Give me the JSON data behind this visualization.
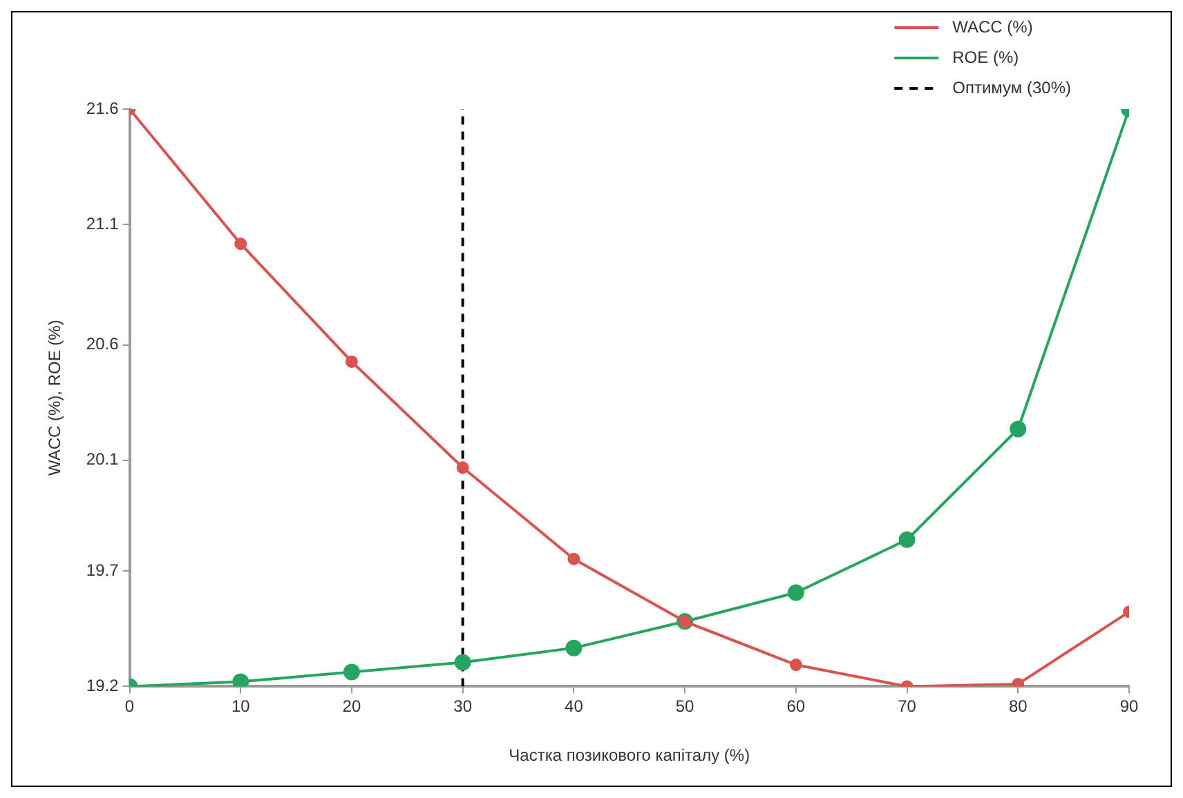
{
  "chart_data": {
    "type": "line",
    "xlabel": "Частка позикового капіталу (%)",
    "ylabel": "WACC (%), ROE (%)",
    "x": [
      0,
      10,
      20,
      30,
      40,
      50,
      60,
      70,
      80,
      90
    ],
    "series": [
      {
        "name": "WACC (%)",
        "color": "#d9534f",
        "values": [
          21.6,
          21.04,
          20.55,
          20.11,
          19.73,
          19.47,
          19.29,
          19.2,
          19.21,
          19.51
        ]
      },
      {
        "name": "ROE (%)",
        "color": "#27a560",
        "values": [
          19.2,
          19.22,
          19.26,
          19.3,
          19.36,
          19.47,
          19.59,
          19.81,
          20.27,
          21.6
        ]
      }
    ],
    "xlim": [
      0,
      90
    ],
    "xticks": [
      0,
      10,
      20,
      30,
      40,
      50,
      60,
      70,
      80,
      90
    ],
    "ylim": [
      19.2,
      21.6
    ],
    "yticks": [
      {
        "value": 19.2,
        "label": "19.2"
      },
      {
        "value": 19.68,
        "label": "19.7"
      },
      {
        "value": 20.14,
        "label": "20.1"
      },
      {
        "value": 20.62,
        "label": "20.6"
      },
      {
        "value": 21.12,
        "label": "21.1"
      },
      {
        "value": 21.6,
        "label": "21.6"
      }
    ],
    "ref_lines": [
      {
        "axis": "x",
        "value": 30,
        "label": "Оптимум (30%)",
        "color": "#000000",
        "line_style": "dashed"
      }
    ],
    "legend": "top right",
    "grid": false,
    "marker": "circle",
    "line_style": "solid"
  }
}
